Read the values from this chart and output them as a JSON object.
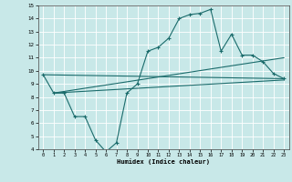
{
  "xlabel": "Humidex (Indice chaleur)",
  "bg_color": "#c8e8e8",
  "line_color": "#1a6b6b",
  "grid_color": "#ffffff",
  "xlim": [
    -0.5,
    23.5
  ],
  "ylim": [
    4,
    15
  ],
  "xticks": [
    0,
    1,
    2,
    3,
    4,
    5,
    6,
    7,
    8,
    9,
    10,
    11,
    12,
    13,
    14,
    15,
    16,
    17,
    18,
    19,
    20,
    21,
    22,
    23
  ],
  "yticks": [
    4,
    5,
    6,
    7,
    8,
    9,
    10,
    11,
    12,
    13,
    14,
    15
  ],
  "line1_x": [
    0,
    1,
    2,
    3,
    4,
    5,
    6,
    7,
    8,
    9,
    10,
    11,
    12,
    13,
    14,
    15,
    16,
    17,
    18,
    19,
    20,
    21,
    22,
    23
  ],
  "line1_y": [
    9.7,
    8.3,
    8.3,
    6.5,
    6.5,
    4.7,
    3.8,
    4.5,
    8.3,
    9.0,
    11.5,
    11.8,
    12.5,
    14.0,
    14.3,
    14.4,
    14.7,
    11.5,
    12.8,
    11.2,
    11.2,
    10.7,
    9.8,
    9.4
  ],
  "line2_x": [
    1,
    23
  ],
  "line2_y": [
    8.3,
    9.3
  ],
  "line3_x": [
    1,
    23
  ],
  "line3_y": [
    8.3,
    11.0
  ],
  "line4_x": [
    0,
    23
  ],
  "line4_y": [
    9.7,
    9.4
  ]
}
